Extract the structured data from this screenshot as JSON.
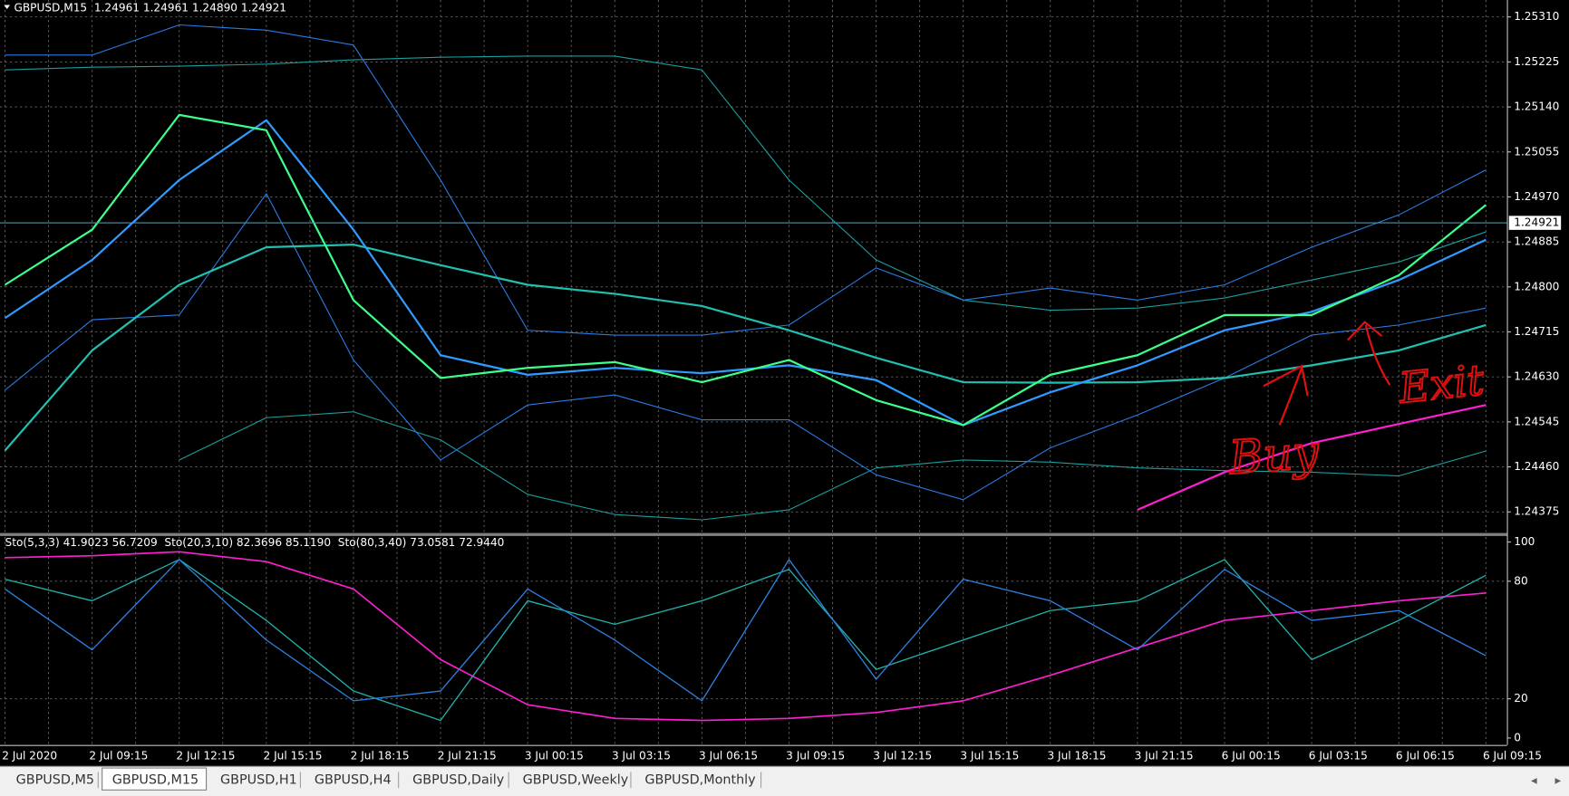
{
  "chart_data": [
    {
      "type": "line",
      "title": "GBPUSD,M15  1.24961 1.24961 1.24890 1.24921",
      "categories": [
        "2 Jul 2020",
        "2 Jul 09:15",
        "2 Jul 12:15",
        "2 Jul 15:15",
        "2 Jul 18:15",
        "2 Jul 21:15",
        "3 Jul 00:15",
        "3 Jul 03:15",
        "3 Jul 06:15",
        "3 Jul 09:15",
        "3 Jul 12:15",
        "3 Jul 15:15",
        "3 Jul 18:15",
        "3 Jul 21:15",
        "6 Jul 00:15",
        "6 Jul 03:15",
        "6 Jul 06:15",
        "6 Jul 09:15"
      ],
      "ylim": [
        1.24337,
        1.25342
      ],
      "yticks": [
        1.24375,
        {
          "value": 1.2446,
          "label": "1.24460"
        },
        1.24545,
        {
          "value": 1.2463,
          "label": "1.24630"
        },
        1.24715,
        {
          "value": 1.248,
          "label": "1.24800"
        },
        1.24885,
        {
          "value": 1.2497,
          "label": "1.24970"
        },
        1.25055,
        {
          "value": 1.2514,
          "label": "1.25140"
        },
        1.25225,
        {
          "value": 1.2531,
          "label": "1.25310"
        }
      ],
      "grid": true,
      "current_price": 1.24921,
      "series": [
        {
          "color": "#1a9e9e",
          "width": 1,
          "values": [
            1.2521,
            1.25215,
            1.25217,
            1.25221,
            1.25229,
            1.25234,
            1.25236,
            1.25236,
            1.2521,
            1.25002,
            1.24851,
            1.24775,
            1.24756,
            1.2476,
            1.24779,
            1.24813,
            1.24847,
            1.24904
          ]
        },
        {
          "color": "#1a9e9e",
          "width": 1,
          "values": [
            null,
            null,
            1.24473,
            1.24553,
            1.24564,
            1.24511,
            1.24408,
            1.2437,
            1.2436,
            1.24379,
            1.24458,
            1.24473,
            1.24469,
            1.24458,
            1.24453,
            1.2445,
            1.24443,
            1.2449
          ]
        },
        {
          "color": "#2a7be4",
          "width": 1,
          "values": [
            1.25238,
            1.25238,
            1.25295,
            1.25285,
            1.25257,
            1.25002,
            1.24718,
            1.24709,
            1.24709,
            1.24728,
            1.24836,
            1.24775,
            1.24798,
            1.24775,
            1.24804,
            1.24875,
            1.24936,
            1.25021
          ]
        },
        {
          "color": "#2a7be4",
          "width": 1,
          "values": [
            1.24605,
            1.24738,
            1.24747,
            1.24976,
            1.24662,
            1.24473,
            1.24577,
            1.24596,
            1.24549,
            1.24549,
            1.24445,
            1.24398,
            1.24496,
            1.24558,
            1.24628,
            1.24709,
            1.24728,
            1.2476
          ]
        },
        {
          "color": "#20c0b0",
          "width": 2,
          "values": [
            1.24491,
            1.2468,
            1.24804,
            1.24875,
            1.2488,
            1.24841,
            1.24804,
            1.24787,
            1.24764,
            1.24718,
            1.24666,
            1.2462,
            1.24619,
            1.2462,
            1.24628,
            1.24652,
            1.2468,
            1.24728
          ]
        },
        {
          "color": "#2f9bff",
          "width": 2,
          "values": [
            1.24741,
            1.24851,
            1.25002,
            1.25115,
            1.24908,
            1.24671,
            1.24634,
            1.24647,
            1.24637,
            1.24652,
            1.24624,
            1.24539,
            1.24601,
            1.24652,
            1.24718,
            1.24753,
            1.24813,
            1.24889
          ]
        },
        {
          "color": "#3cff8a",
          "width": 2,
          "values": [
            1.24804,
            1.24908,
            1.25125,
            1.25096,
            1.24775,
            1.24628,
            1.24647,
            1.24658,
            1.2462,
            1.24662,
            1.24586,
            1.24539,
            1.24634,
            1.24671,
            1.24747,
            1.24747,
            1.24822,
            1.24955
          ]
        },
        {
          "color": "#ff1fd0",
          "width": 2,
          "values": [
            null,
            null,
            null,
            null,
            null,
            null,
            null,
            null,
            null,
            null,
            null,
            null,
            null,
            1.24379,
            1.2445,
            1.24505,
            1.24541,
            1.24577
          ]
        }
      ],
      "annotations": [
        {
          "text": "Buy",
          "color": "#e01010"
        },
        {
          "text": "Exit",
          "color": "#e01010"
        }
      ]
    },
    {
      "type": "line",
      "title": "Sto(5,3,3) 41.9023 56.7209  Sto(20,3,10) 82.3696 85.1190  Sto(80,3,40) 73.0581 72.9440",
      "ylim": [
        0,
        100
      ],
      "yticks": [
        0,
        20,
        80,
        100
      ],
      "series": [
        {
          "color": "#ff1fd0",
          "width": 1.5,
          "values": [
            92,
            93,
            95,
            90,
            76,
            40,
            17,
            10,
            9,
            10,
            13,
            19,
            32,
            46,
            60,
            65,
            70,
            74
          ]
        },
        {
          "color": "#20b2aa",
          "width": 1.2,
          "values": [
            81,
            70,
            91,
            60,
            24,
            9,
            70,
            58,
            70,
            86,
            35,
            50,
            65,
            70,
            91,
            40,
            60,
            83
          ]
        },
        {
          "color": "#2f7fe0",
          "width": 1.2,
          "values": [
            76,
            45,
            91,
            50,
            19,
            24,
            76,
            50,
            19,
            91,
            30,
            81,
            70,
            45,
            86,
            60,
            65,
            42
          ]
        }
      ]
    }
  ],
  "tabs": [
    {
      "label": "GBPUSD,M5"
    },
    {
      "label": "GBPUSD,M15",
      "active": true
    },
    {
      "label": "GBPUSD,H1"
    },
    {
      "label": "GBPUSD,H4"
    },
    {
      "label": "GBPUSD,Daily"
    },
    {
      "label": "GBPUSD,Weekly"
    },
    {
      "label": "GBPUSD,Monthly"
    }
  ]
}
